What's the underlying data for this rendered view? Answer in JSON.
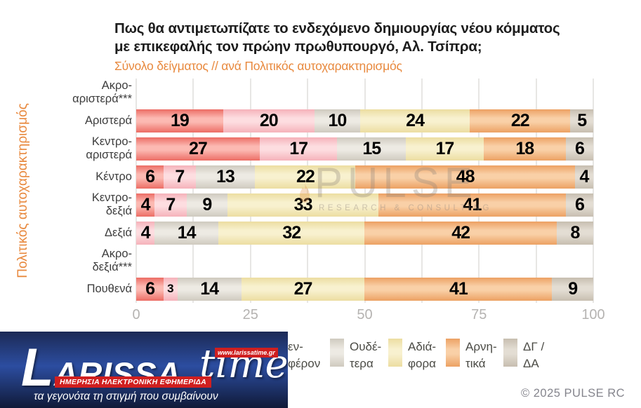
{
  "header": {
    "title_line1": "Πως θα αντιμετωπίζατε το ενδεχόμενο δημιουργίας νέου κόμματος",
    "title_line2": "με επικεφαλής τον πρώην πρωθυπουργό, Αλ. Τσίπρα;",
    "subtitle": "Σύνολο δείγματος // ανά Πολιτικός αυτοχαρακτηρισμός"
  },
  "chart_data": {
    "type": "bar",
    "stacked": true,
    "orientation": "horizontal",
    "y_axis_title": "Πολιτικός αυτοχαρακτηρισμός",
    "x_range": [
      0,
      100
    ],
    "x_ticks": [
      0,
      25,
      50,
      75,
      100
    ],
    "gridline_step": 12.5,
    "categories": [
      "Ακρο-αριστερά***",
      "Αριστερά",
      "Κεντρο-αριστερά",
      "Κέντρο",
      "Κεντρο-δεξιά",
      "Δεξιά",
      "Ακρο-δεξιά***",
      "Πουθενά"
    ],
    "category_label_lines": [
      [
        "Ακρο-",
        "αριστερά***"
      ],
      [
        "Αριστερά"
      ],
      [
        "Κεντρο-",
        "αριστερά"
      ],
      [
        "Κέντρο"
      ],
      [
        "Κεντρο-",
        "δεξιά"
      ],
      [
        "Δεξιά"
      ],
      [
        "Ακρο-",
        "δεξιά***"
      ],
      [
        "Πουθενά"
      ]
    ],
    "series": [
      {
        "id": "s1-red",
        "legend_label_lines": [],
        "legend_hidden_by_logo": true,
        "color_edge": "#ec6d65",
        "color_mid": "#fcb9b2",
        "values": [
          null,
          19,
          27,
          6,
          4,
          0,
          null,
          6
        ]
      },
      {
        "id": "s2-pink",
        "legend_label_lines": [
          "εν-",
          "φέρον"
        ],
        "legend_swatch_hidden": true,
        "color_edge": "#f5b2ba",
        "color_mid": "#fddde0",
        "values": [
          null,
          20,
          17,
          7,
          7,
          4,
          null,
          3
        ]
      },
      {
        "id": "s3-gray",
        "legend_label_lines": [
          "Ουδέ-",
          "τερα"
        ],
        "color_edge": "#cfcabf",
        "color_mid": "#edeae3",
        "values": [
          null,
          10,
          15,
          13,
          9,
          14,
          null,
          14
        ]
      },
      {
        "id": "s4-yellow",
        "legend_label_lines": [
          "Αδιά-",
          "φορα"
        ],
        "color_edge": "#ecdda1",
        "color_mid": "#f8f1cf",
        "values": [
          null,
          24,
          17,
          22,
          33,
          32,
          null,
          27
        ]
      },
      {
        "id": "s5-orange",
        "legend_label_lines": [
          "Αρνη-",
          "τικά"
        ],
        "color_edge": "#eca163",
        "color_mid": "#f9d0a7",
        "values": [
          null,
          22,
          18,
          48,
          41,
          42,
          null,
          41
        ]
      },
      {
        "id": "s6-tan",
        "legend_label_lines": [
          "ΔΓ /",
          "ΔΑ"
        ],
        "color_edge": "#c7beb0",
        "color_mid": "#e3ddd3",
        "values": [
          null,
          5,
          6,
          4,
          6,
          8,
          null,
          9
        ]
      }
    ]
  },
  "watermark": {
    "main": "PULSE",
    "sub": "RESEARCH & CONSULTING"
  },
  "footer": {
    "copyright": "© 2025 PULSE RC"
  },
  "logo": {
    "brand_main": "LARISSA",
    "brand_time": "time",
    "url": "www.larissatime.gr",
    "banner": "ΗΜΕΡΗΣΙΑ ΗΛΕΚΤΡΟΝΙΚΗ ΕΦΗΜΕΡΙΔΑ",
    "tagline": "τα γεγονότα τη στιγμή που συμβαίνουν"
  },
  "colors": {
    "accent_orange": "#e8893e",
    "title_text": "#1d1d1d",
    "tick_text": "#b5b3b1",
    "gridline": "#e7e6e4",
    "logo_red": "#cf1f1f"
  }
}
